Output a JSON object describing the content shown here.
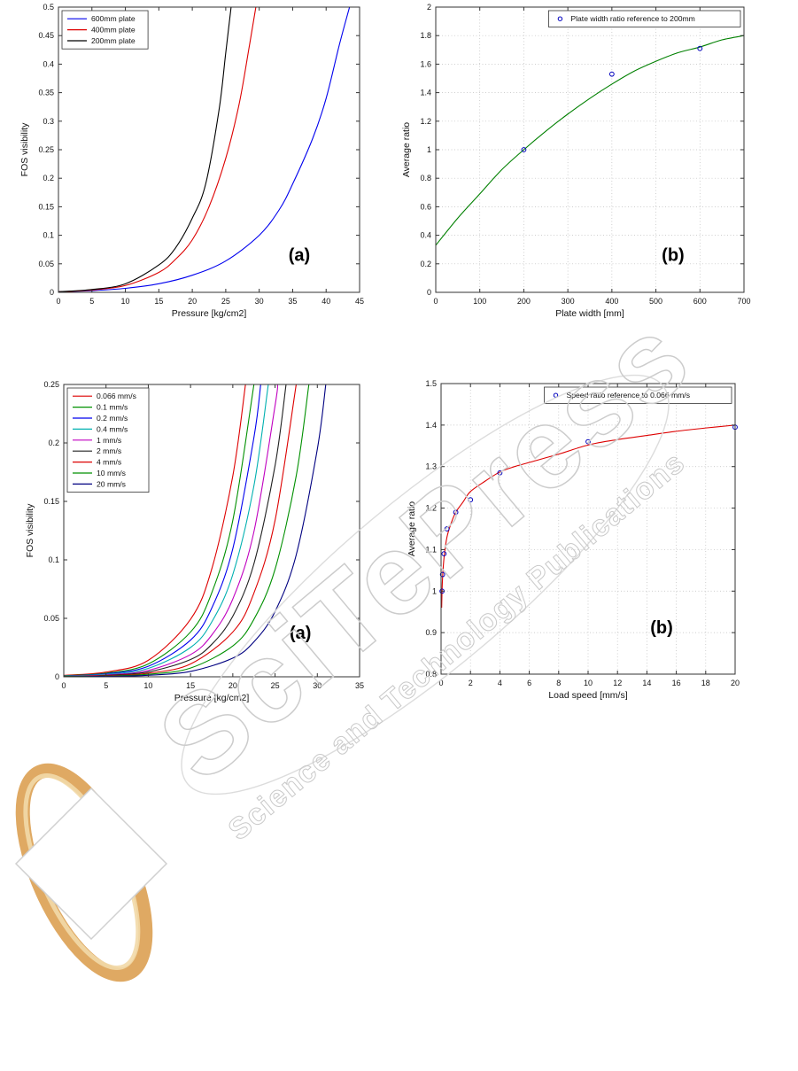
{
  "page": {
    "background": "#ffffff"
  },
  "watermark": {
    "main": "SciTePress",
    "sub": "Science and Technology Publications",
    "outline_color": "#cccccc",
    "logo_ring_color": "#e2b271",
    "logo_diamond_color": "#ffffff"
  },
  "chart_data": [
    {
      "id": "fig1a",
      "type": "line",
      "title": "",
      "xlabel": "Pressure [kg/cm2]",
      "ylabel": "FOS visibility",
      "xlim": [
        0,
        45
      ],
      "ylim": [
        0,
        0.5
      ],
      "xticks": [
        0,
        5,
        10,
        15,
        20,
        25,
        30,
        35,
        40,
        45
      ],
      "yticks": [
        0,
        0.05,
        0.1,
        0.15,
        0.2,
        0.25,
        0.3,
        0.35,
        0.4,
        0.45,
        0.5
      ],
      "grid": false,
      "legend": {
        "show": true,
        "pos": "nw",
        "marker": "line"
      },
      "annotation": {
        "text": "(a)",
        "fx": 0.8,
        "fy": 0.89
      },
      "series": [
        {
          "name": "600mm plate",
          "color": "#0000ee",
          "x": [
            0,
            5,
            10,
            15,
            20,
            25,
            30,
            33,
            35,
            38,
            40,
            42,
            43.5
          ],
          "y": [
            0.001,
            0.003,
            0.007,
            0.015,
            0.03,
            0.055,
            0.1,
            0.145,
            0.19,
            0.27,
            0.34,
            0.435,
            0.5
          ]
        },
        {
          "name": "400mm plate",
          "color": "#dd0000",
          "x": [
            0,
            5,
            10,
            15,
            17.5,
            20,
            22.5,
            25,
            27,
            28.5,
            29.5
          ],
          "y": [
            0.001,
            0.004,
            0.012,
            0.035,
            0.058,
            0.092,
            0.15,
            0.235,
            0.33,
            0.43,
            0.5
          ]
        },
        {
          "name": "200mm plate",
          "color": "#000000",
          "x": [
            0,
            5,
            10,
            15,
            17.5,
            20,
            22,
            24,
            25,
            25.8
          ],
          "y": [
            0.001,
            0.005,
            0.015,
            0.048,
            0.078,
            0.13,
            0.19,
            0.32,
            0.42,
            0.5
          ]
        }
      ]
    },
    {
      "id": "fig1b",
      "type": "line",
      "title": "",
      "xlabel": "Plate width [mm]",
      "ylabel": "Average ratio",
      "xlim": [
        0,
        700
      ],
      "ylim": [
        0,
        2
      ],
      "xticks": [
        0,
        100,
        200,
        300,
        400,
        500,
        600,
        700
      ],
      "yticks": [
        0,
        0.2,
        0.4,
        0.6,
        0.8,
        1,
        1.2,
        1.4,
        1.6,
        1.8,
        2
      ],
      "grid": true,
      "legend": {
        "show": true,
        "pos": "ne",
        "marker": "circle",
        "entries": [
          {
            "label": "Plate width ratio reference to 200mm",
            "color": "#0000bf"
          }
        ]
      },
      "annotation": {
        "text": "(b)",
        "fx": 0.77,
        "fy": 0.89
      },
      "series": [
        {
          "name": "fitted curve",
          "color": "#008000",
          "x": [
            0,
            50,
            100,
            150,
            200,
            250,
            300,
            350,
            400,
            450,
            500,
            550,
            600,
            650,
            700
          ],
          "y": [
            0.33,
            0.52,
            0.69,
            0.86,
            1.0,
            1.13,
            1.25,
            1.36,
            1.46,
            1.55,
            1.62,
            1.68,
            1.72,
            1.77,
            1.8
          ]
        }
      ],
      "points": {
        "color": "#0000bf",
        "x": [
          200,
          400,
          600
        ],
        "y": [
          1.0,
          1.53,
          1.71
        ]
      }
    },
    {
      "id": "fig2a",
      "type": "line",
      "title": "",
      "xlabel": "Pressure [kg/cm2]",
      "ylabel": "FOS visibility",
      "xlim": [
        0,
        35
      ],
      "ylim": [
        0,
        0.25
      ],
      "xticks": [
        0,
        5,
        10,
        15,
        20,
        25,
        30,
        35
      ],
      "yticks": [
        0,
        0.05,
        0.1,
        0.15,
        0.2,
        0.25
      ],
      "grid": false,
      "legend": {
        "show": true,
        "pos": "nw",
        "marker": "line"
      },
      "annotation": {
        "text": "(a)",
        "fx": 0.8,
        "fy": 0.87
      },
      "series": [
        {
          "name": "0.066 mm/s",
          "color": "#dd0000",
          "x": [
            0,
            5,
            10,
            15,
            17.5,
            20,
            21.5
          ],
          "y": [
            0.0012,
            0.004,
            0.0141,
            0.0492,
            0.092,
            0.1718,
            0.25
          ]
        },
        {
          "name": "0.1 mm/s",
          "color": "#009000",
          "x": [
            0,
            5,
            10,
            15,
            17.5,
            20,
            22.5
          ],
          "y": [
            0.0009,
            0.0031,
            0.011,
            0.0383,
            0.0716,
            0.1338,
            0.25
          ]
        },
        {
          "name": "0.2 mm/s",
          "color": "#0000ee",
          "x": [
            0,
            5,
            10,
            15,
            17.5,
            20,
            22.5,
            23.3
          ],
          "y": [
            0.0007,
            0.0026,
            0.009,
            0.0314,
            0.0586,
            0.1096,
            0.2047,
            0.25
          ]
        },
        {
          "name": "0.4 mm/s",
          "color": "#00b0b0",
          "x": [
            0,
            5,
            10,
            15,
            17.5,
            20,
            22.5,
            24.2
          ],
          "y": [
            0.0006,
            0.0021,
            0.0072,
            0.0251,
            0.0468,
            0.0875,
            0.1634,
            0.25
          ]
        },
        {
          "name": "1 mm/s",
          "color": "#c000c0",
          "x": [
            0,
            5,
            10,
            15,
            17.5,
            20,
            22.5,
            25,
            25.3
          ],
          "y": [
            0.0004,
            0.0016,
            0.0055,
            0.019,
            0.0356,
            0.0665,
            0.1241,
            0.2319,
            0.25
          ]
        },
        {
          "name": "2 mm/s",
          "color": "#202020",
          "x": [
            0,
            5,
            10,
            15,
            17.5,
            20,
            22.5,
            25,
            26.3
          ],
          "y": [
            0.0003,
            0.0012,
            0.0042,
            0.0148,
            0.0277,
            0.0518,
            0.0967,
            0.1806,
            0.25
          ]
        },
        {
          "name": "4 mm/s",
          "color": "#dd0000",
          "x": [
            0,
            5,
            10,
            15,
            20,
            22.5,
            25,
            27.5
          ],
          "y": [
            0.0003,
            0.0009,
            0.0031,
            0.011,
            0.0383,
            0.0716,
            0.1338,
            0.25
          ]
        },
        {
          "name": "10 mm/s",
          "color": "#009000",
          "x": [
            0,
            5,
            10,
            15,
            20,
            22.5,
            25,
            27.5,
            29
          ],
          "y": [
            0.0002,
            0.0006,
            0.0022,
            0.0075,
            0.0264,
            0.0492,
            0.092,
            0.1718,
            0.25
          ]
        },
        {
          "name": "20 mm/s",
          "color": "#000080",
          "x": [
            0,
            5,
            10,
            15,
            20,
            22.5,
            25,
            27.5,
            30,
            31
          ],
          "y": [
            0.0001,
            0.0004,
            0.0013,
            0.0046,
            0.016,
            0.0299,
            0.0558,
            0.1042,
            0.1947,
            0.25
          ]
        }
      ]
    },
    {
      "id": "fig2b",
      "type": "line",
      "title": "",
      "xlabel": "Load speed [mm/s]",
      "ylabel": "Average ratio",
      "xlim": [
        0,
        20
      ],
      "ylim": [
        0.8,
        1.5
      ],
      "xticks": [
        0,
        2,
        4,
        6,
        8,
        10,
        12,
        14,
        16,
        18,
        20
      ],
      "yticks": [
        0.8,
        0.9,
        1,
        1.1,
        1.2,
        1.3,
        1.4,
        1.5
      ],
      "grid": true,
      "legend": {
        "show": true,
        "pos": "ne",
        "marker": "circle",
        "entries": [
          {
            "label": "Speed ratio reference to 0.066 mm/s",
            "color": "#0000bf"
          }
        ]
      },
      "annotation": {
        "text": "(b)",
        "fx": 0.75,
        "fy": 0.86
      },
      "series": [
        {
          "name": "fitted curve",
          "color": "#dd0000",
          "x": [
            0.04,
            0.066,
            0.1,
            0.2,
            0.4,
            0.7,
            1,
            1.5,
            2,
            3,
            4,
            5,
            6,
            8,
            10,
            12,
            14,
            16,
            18,
            20
          ],
          "y": [
            0.96,
            1.0,
            1.03,
            1.08,
            1.13,
            1.165,
            1.19,
            1.215,
            1.24,
            1.265,
            1.287,
            1.3,
            1.31,
            1.33,
            1.352,
            1.365,
            1.375,
            1.385,
            1.393,
            1.4
          ]
        }
      ],
      "points": {
        "color": "#0000bf",
        "x": [
          0.066,
          0.1,
          0.2,
          0.4,
          1,
          2,
          4,
          10,
          20
        ],
        "y": [
          1.0,
          1.04,
          1.09,
          1.15,
          1.19,
          1.22,
          1.285,
          1.36,
          1.395
        ]
      }
    }
  ]
}
